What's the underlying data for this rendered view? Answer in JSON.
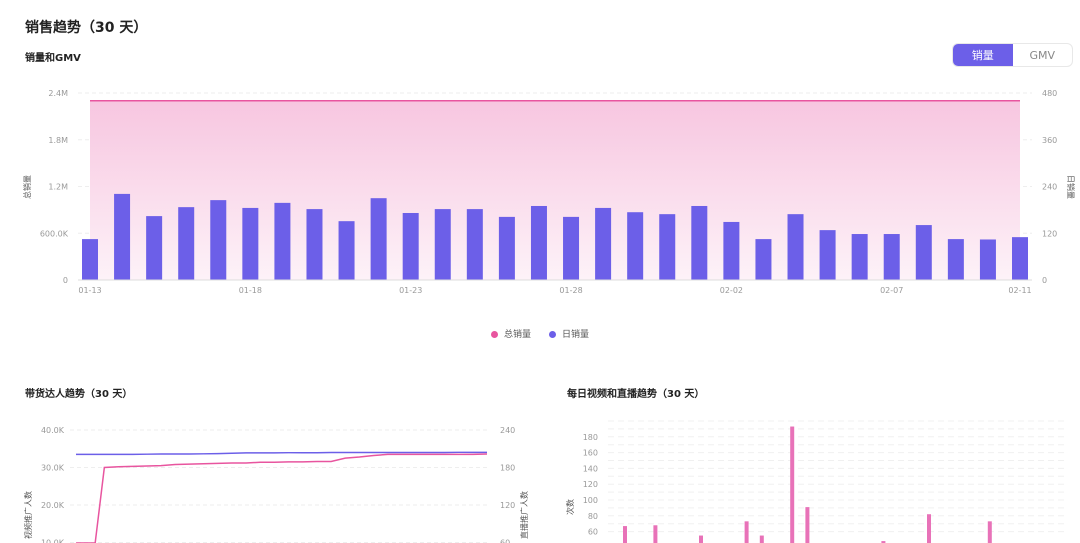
{
  "page_title": "销售趋势（30 天）",
  "sales": {
    "subtitle": "销量和GMV",
    "toggle": [
      {
        "label": "销量",
        "active": true
      },
      {
        "label": "GMV",
        "active": false
      }
    ],
    "legend": [
      {
        "label": "总销量",
        "color": "#e8559f"
      },
      {
        "label": "日销量",
        "color": "#6c5fe8"
      }
    ]
  },
  "creators": {
    "title": "带货达人趋势（30 天）"
  },
  "daily": {
    "title": "每日视频和直播趋势（30 天）"
  },
  "chart_data": [
    {
      "type": "bar",
      "title": "销量和GMV",
      "x_tick_labels": [
        "01-13",
        "01-18",
        "01-23",
        "01-28",
        "02-02",
        "02-07",
        "02-11"
      ],
      "categories": [
        "01-13",
        "01-14",
        "01-15",
        "01-16",
        "01-17",
        "01-18",
        "01-19",
        "01-20",
        "01-21",
        "01-22",
        "01-23",
        "01-24",
        "01-25",
        "01-26",
        "01-27",
        "01-28",
        "01-29",
        "01-30",
        "01-31",
        "02-01",
        "02-02",
        "02-03",
        "02-04",
        "02-05",
        "02-06",
        "02-07",
        "02-08",
        "02-09",
        "02-10",
        "02-11"
      ],
      "ylabel_left": "总销量",
      "ylabel_right": "日销量",
      "left_ticks": [
        "0",
        "600.0K",
        "1.2M",
        "1.8M",
        "2.4M"
      ],
      "right_ticks": [
        "0",
        "120",
        "240",
        "360",
        "480"
      ],
      "ylim_left": [
        0,
        2400000
      ],
      "ylim_right": [
        0,
        480
      ],
      "grid": true,
      "legend": "bottom",
      "series": [
        {
          "name": "日销量",
          "type": "bar",
          "axis": "right",
          "color": "#6c5fe8",
          "values": [
            105,
            221,
            164,
            187,
            205,
            185,
            198,
            182,
            151,
            210,
            172,
            182,
            182,
            162,
            190,
            162,
            185,
            174,
            169,
            190,
            149,
            105,
            169,
            128,
            118,
            118,
            141,
            105,
            104,
            110
          ]
        },
        {
          "name": "总销量",
          "type": "area",
          "axis": "left",
          "color": "#e8559f",
          "values": [
            2300000,
            2300000,
            2300000,
            2300000,
            2300000,
            2300000,
            2300000,
            2300000,
            2300000,
            2300000,
            2300000,
            2300000,
            2300000,
            2300000,
            2300000,
            2300000,
            2300000,
            2300000,
            2300000,
            2300000,
            2300000,
            2300000,
            2300000,
            2300000,
            2300000,
            2300000,
            2300000,
            2300000,
            2300000,
            2300000
          ]
        }
      ]
    },
    {
      "type": "line",
      "title": "带货达人趋势（30 天）",
      "ylabel_left": "视频推广人数",
      "ylabel_right": "直播推广人数",
      "left_ticks": [
        "10.0K",
        "20.0K",
        "30.0K",
        "40.0K"
      ],
      "right_ticks": [
        "60",
        "120",
        "180",
        "240"
      ],
      "ylim_left": [
        0,
        40000
      ],
      "ylim_right": [
        0,
        240
      ],
      "grid": true,
      "series": [
        {
          "axis": "left",
          "color": "#6c5fe8",
          "values": [
            33500,
            33500,
            33500,
            33500,
            33500,
            33550,
            33600,
            33600,
            33600,
            33650,
            33700,
            33800,
            33900,
            33900,
            33900,
            33950,
            33950,
            33950,
            34000,
            34000,
            34000,
            34000,
            34000,
            34000,
            34000,
            34000,
            34000,
            34050,
            34050,
            34050
          ]
        },
        {
          "axis": "left",
          "color": "#e8559f",
          "values": [
            -5000,
            -5000,
            30000,
            30200,
            30300,
            30400,
            30500,
            30800,
            30900,
            31000,
            31100,
            31200,
            31200,
            31400,
            31400,
            31500,
            31500,
            31600,
            31600,
            32500,
            32800,
            33200,
            33500,
            33500,
            33500,
            33500,
            33500,
            33500,
            33500,
            33600
          ]
        }
      ]
    },
    {
      "type": "bar",
      "title": "每日视频和直播趋势（30 天）",
      "ylabel": "次数",
      "y_ticks": [
        "60",
        "80",
        "100",
        "120",
        "140",
        "160",
        "180"
      ],
      "ylim": [
        0,
        200
      ],
      "grid": true,
      "series": [
        {
          "color": "#e872b8",
          "points": [
            [
              0,
              67
            ],
            [
              2,
              68
            ],
            [
              5,
              55
            ],
            [
              8,
              73
            ],
            [
              9,
              55
            ],
            [
              11,
              193
            ],
            [
              12,
              91
            ],
            [
              17,
              48
            ],
            [
              20,
              82
            ],
            [
              24,
              73
            ]
          ]
        }
      ]
    }
  ]
}
